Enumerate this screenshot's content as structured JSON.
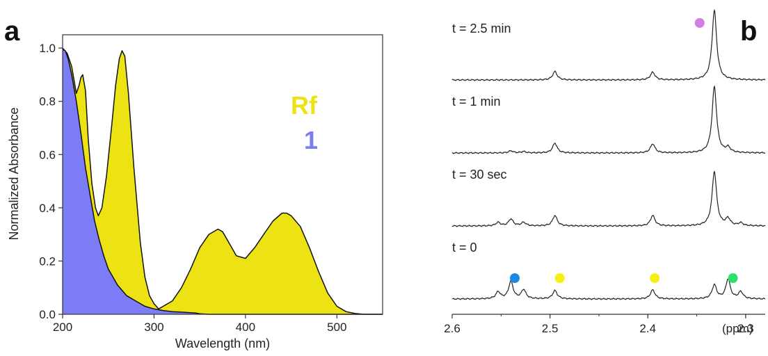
{
  "panel_labels": {
    "a": "a",
    "b": "b"
  },
  "colors": {
    "yellow": "#ece214",
    "blue": "#7b7cf6",
    "dot_purple": "#d17fe4",
    "dot_blue": "#1e88e5",
    "dot_yellow": "#f5ef14",
    "dot_green": "#2ee06e",
    "line": "#222222"
  },
  "chart_data": [
    {
      "type": "area",
      "xlabel": "Wavelength (nm)",
      "ylabel": "Normalized Absorbance",
      "xlim": [
        200,
        550
      ],
      "ylim": [
        0,
        1.05
      ],
      "xticks": [
        200,
        300,
        400,
        500
      ],
      "yticks": [
        0.0,
        0.2,
        0.4,
        0.6,
        0.8,
        1.0
      ],
      "ytick_labels": [
        "0.0",
        "0.2",
        "0.4",
        "0.6",
        "0.8",
        "1.0"
      ],
      "legend": [
        {
          "label": "Rf",
          "color": "#ece214"
        },
        {
          "label": "1",
          "color": "#7b7cf6"
        }
      ],
      "series": [
        {
          "name": "Rf",
          "color": "#ece214",
          "x": [
            200,
            205,
            210,
            215,
            218,
            220,
            222,
            225,
            228,
            232,
            236,
            239,
            243,
            248,
            254,
            258,
            262,
            265,
            268,
            272,
            278,
            285,
            290,
            295,
            300,
            305,
            310,
            320,
            330,
            340,
            350,
            360,
            370,
            375,
            380,
            390,
            400,
            410,
            420,
            430,
            440,
            445,
            450,
            460,
            470,
            480,
            490,
            500,
            510,
            520,
            530,
            550
          ],
          "y": [
            1.0,
            0.98,
            0.93,
            0.83,
            0.86,
            0.89,
            0.9,
            0.84,
            0.66,
            0.49,
            0.4,
            0.37,
            0.4,
            0.52,
            0.72,
            0.86,
            0.96,
            0.99,
            0.97,
            0.83,
            0.55,
            0.27,
            0.14,
            0.07,
            0.04,
            0.02,
            0.03,
            0.05,
            0.1,
            0.17,
            0.25,
            0.3,
            0.32,
            0.31,
            0.28,
            0.22,
            0.21,
            0.25,
            0.3,
            0.35,
            0.38,
            0.38,
            0.37,
            0.33,
            0.25,
            0.16,
            0.08,
            0.03,
            0.01,
            0.003,
            0.0,
            0.0
          ]
        },
        {
          "name": "1",
          "color": "#7b7cf6",
          "x": [
            200,
            203,
            206,
            210,
            215,
            220,
            225,
            230,
            235,
            240,
            245,
            250,
            255,
            260,
            265,
            270,
            280,
            290,
            300,
            310,
            320,
            330,
            340,
            345,
            350,
            360,
            400,
            450,
            500,
            550
          ],
          "y": [
            0.995,
            0.99,
            0.96,
            0.9,
            0.8,
            0.68,
            0.55,
            0.45,
            0.35,
            0.28,
            0.22,
            0.17,
            0.14,
            0.11,
            0.09,
            0.07,
            0.05,
            0.03,
            0.02,
            0.014,
            0.01,
            0.008,
            0.006,
            0.005,
            0.002,
            0.0,
            0.0,
            0.0,
            0.0,
            0.0
          ]
        }
      ]
    },
    {
      "type": "line",
      "xlabel": "(ppm)",
      "xlim": [
        2.6,
        2.28
      ],
      "xticks": [
        2.6,
        2.5,
        2.4,
        2.3
      ],
      "xtick_labels": [
        "2.6",
        "2.5",
        "2.4",
        "2.3"
      ],
      "series": [
        {
          "name": "t = 2.5 min",
          "peaks": [
            {
              "ppm": 2.495,
              "height": 0.12
            },
            {
              "ppm": 2.395,
              "height": 0.11
            },
            {
              "ppm": 2.332,
              "height": 1.0
            }
          ],
          "markers": [
            {
              "ppm": 2.347,
              "color": "#d17fe4"
            }
          ]
        },
        {
          "name": "t = 1 min",
          "peaks": [
            {
              "ppm": 2.54,
              "height": 0.03
            },
            {
              "ppm": 2.527,
              "height": 0.02
            },
            {
              "ppm": 2.495,
              "height": 0.14
            },
            {
              "ppm": 2.395,
              "height": 0.13
            },
            {
              "ppm": 2.332,
              "height": 0.95
            },
            {
              "ppm": 2.318,
              "height": 0.07
            }
          ],
          "markers": []
        },
        {
          "name": "t = 30 sec",
          "peaks": [
            {
              "ppm": 2.553,
              "height": 0.05
            },
            {
              "ppm": 2.54,
              "height": 0.1
            },
            {
              "ppm": 2.527,
              "height": 0.05
            },
            {
              "ppm": 2.495,
              "height": 0.15
            },
            {
              "ppm": 2.395,
              "height": 0.15
            },
            {
              "ppm": 2.332,
              "height": 0.78
            },
            {
              "ppm": 2.318,
              "height": 0.1
            },
            {
              "ppm": 2.305,
              "height": 0.04
            }
          ],
          "markers": []
        },
        {
          "name": "t = 0",
          "peaks": [
            {
              "ppm": 2.553,
              "height": 0.1
            },
            {
              "ppm": 2.54,
              "height": 0.25
            },
            {
              "ppm": 2.527,
              "height": 0.13
            },
            {
              "ppm": 2.495,
              "height": 0.12
            },
            {
              "ppm": 2.395,
              "height": 0.13
            },
            {
              "ppm": 2.332,
              "height": 0.2
            },
            {
              "ppm": 2.318,
              "height": 0.28
            },
            {
              "ppm": 2.305,
              "height": 0.1
            }
          ],
          "markers": [
            {
              "ppm": 2.536,
              "color": "#1e88e5"
            },
            {
              "ppm": 2.49,
              "color": "#f5ef14"
            },
            {
              "ppm": 2.393,
              "color": "#f5ef14"
            },
            {
              "ppm": 2.313,
              "color": "#2ee06e"
            }
          ]
        }
      ]
    }
  ]
}
